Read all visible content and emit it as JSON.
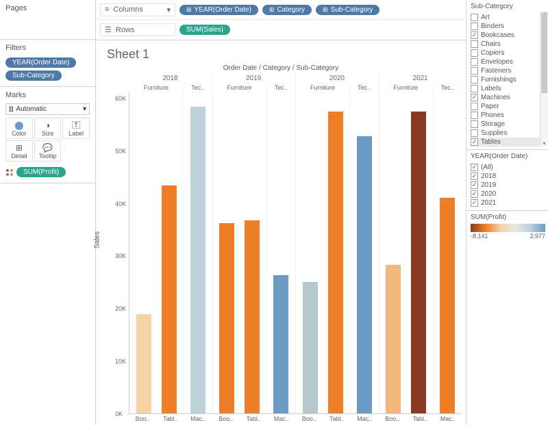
{
  "left": {
    "pages_title": "Pages",
    "filters_title": "Filters",
    "filter_pills": [
      "YEAR(Order Date)",
      "Sub-Category"
    ],
    "marks_title": "Marks",
    "marks_mode": "Automatic",
    "mark_buttons": [
      "Color",
      "Size",
      "Label",
      "Detail",
      "Tooltip"
    ],
    "profit_pill": "SUM(Profit)"
  },
  "shelves": {
    "columns_label": "Columns",
    "rows_label": "Rows",
    "column_pills": [
      "YEAR(Order Date)",
      "Category",
      "Sub-Category"
    ],
    "row_pills": [
      "SUM(Sales)"
    ]
  },
  "chart": {
    "sheet_title": "Sheet 1",
    "header": "Order Date / Category / Sub-Category",
    "years": [
      "2018",
      "2019",
      "2020",
      "2021"
    ],
    "cats": [
      "Furniture",
      "Tec..",
      "Furniture",
      "Tec..",
      "Furniture",
      "Tec..",
      "Furniture",
      "Tec.."
    ],
    "y_label": "Sales",
    "y_ticks": [
      "60K",
      "50K",
      "40K",
      "30K",
      "20K",
      "10K",
      "0K"
    ],
    "y_max": 65000,
    "x_labels": [
      "Boo..",
      "Tabl..",
      "Mac..",
      "Boo..",
      "Tabl..",
      "Mac..",
      "Boo..",
      "Tabl..",
      "Mac..",
      "Boo..",
      "Tabl..",
      "Mac.."
    ],
    "groups": [
      {
        "furn": [
          {
            "v": 20000,
            "c": "#f4d2a5"
          },
          {
            "v": 46000,
            "c": "#ee7f28"
          }
        ],
        "tech": [
          {
            "v": 62000,
            "c": "#bcd1d9"
          }
        ]
      },
      {
        "furn": [
          {
            "v": 38500,
            "c": "#ee7f28"
          },
          {
            "v": 39000,
            "c": "#ee7f28"
          }
        ],
        "tech": [
          {
            "v": 28000,
            "c": "#6b9bc3"
          }
        ]
      },
      {
        "furn": [
          {
            "v": 26500,
            "c": "#b7c8cd"
          },
          {
            "v": 61000,
            "c": "#ee7f28"
          }
        ],
        "tech": [
          {
            "v": 56000,
            "c": "#6b9bc3"
          }
        ]
      },
      {
        "furn": [
          {
            "v": 30000,
            "c": "#f2b77f"
          },
          {
            "v": 61000,
            "c": "#8b3a1f"
          }
        ],
        "tech": [
          {
            "v": 43500,
            "c": "#ee7f28"
          }
        ]
      }
    ]
  },
  "right": {
    "subcat_title": "Sub-Category",
    "subcats": [
      {
        "label": "Art",
        "on": false
      },
      {
        "label": "Binders",
        "on": false
      },
      {
        "label": "Bookcases",
        "on": true
      },
      {
        "label": "Chairs",
        "on": false
      },
      {
        "label": "Copiers",
        "on": false
      },
      {
        "label": "Envelopes",
        "on": false
      },
      {
        "label": "Fasteners",
        "on": false
      },
      {
        "label": "Furnishings",
        "on": false
      },
      {
        "label": "Labels",
        "on": false
      },
      {
        "label": "Machines",
        "on": true
      },
      {
        "label": "Paper",
        "on": false
      },
      {
        "label": "Phones",
        "on": false
      },
      {
        "label": "Storage",
        "on": false
      },
      {
        "label": "Supplies",
        "on": false
      },
      {
        "label": "Tables",
        "on": true,
        "sel": true
      }
    ],
    "year_title": "YEAR(Order Date)",
    "years": [
      {
        "label": "(All)",
        "on": true
      },
      {
        "label": "2018",
        "on": true
      },
      {
        "label": "2019",
        "on": true
      },
      {
        "label": "2020",
        "on": true
      },
      {
        "label": "2021",
        "on": true
      }
    ],
    "profit_title": "SUM(Profit)",
    "profit_min": "-8,141",
    "profit_max": "2,977",
    "gradient_colors": [
      "#8b3a1f",
      "#ee7f28",
      "#f4d2a5",
      "#e8e8e8",
      "#bcd1d9",
      "#6b9bc3"
    ]
  }
}
